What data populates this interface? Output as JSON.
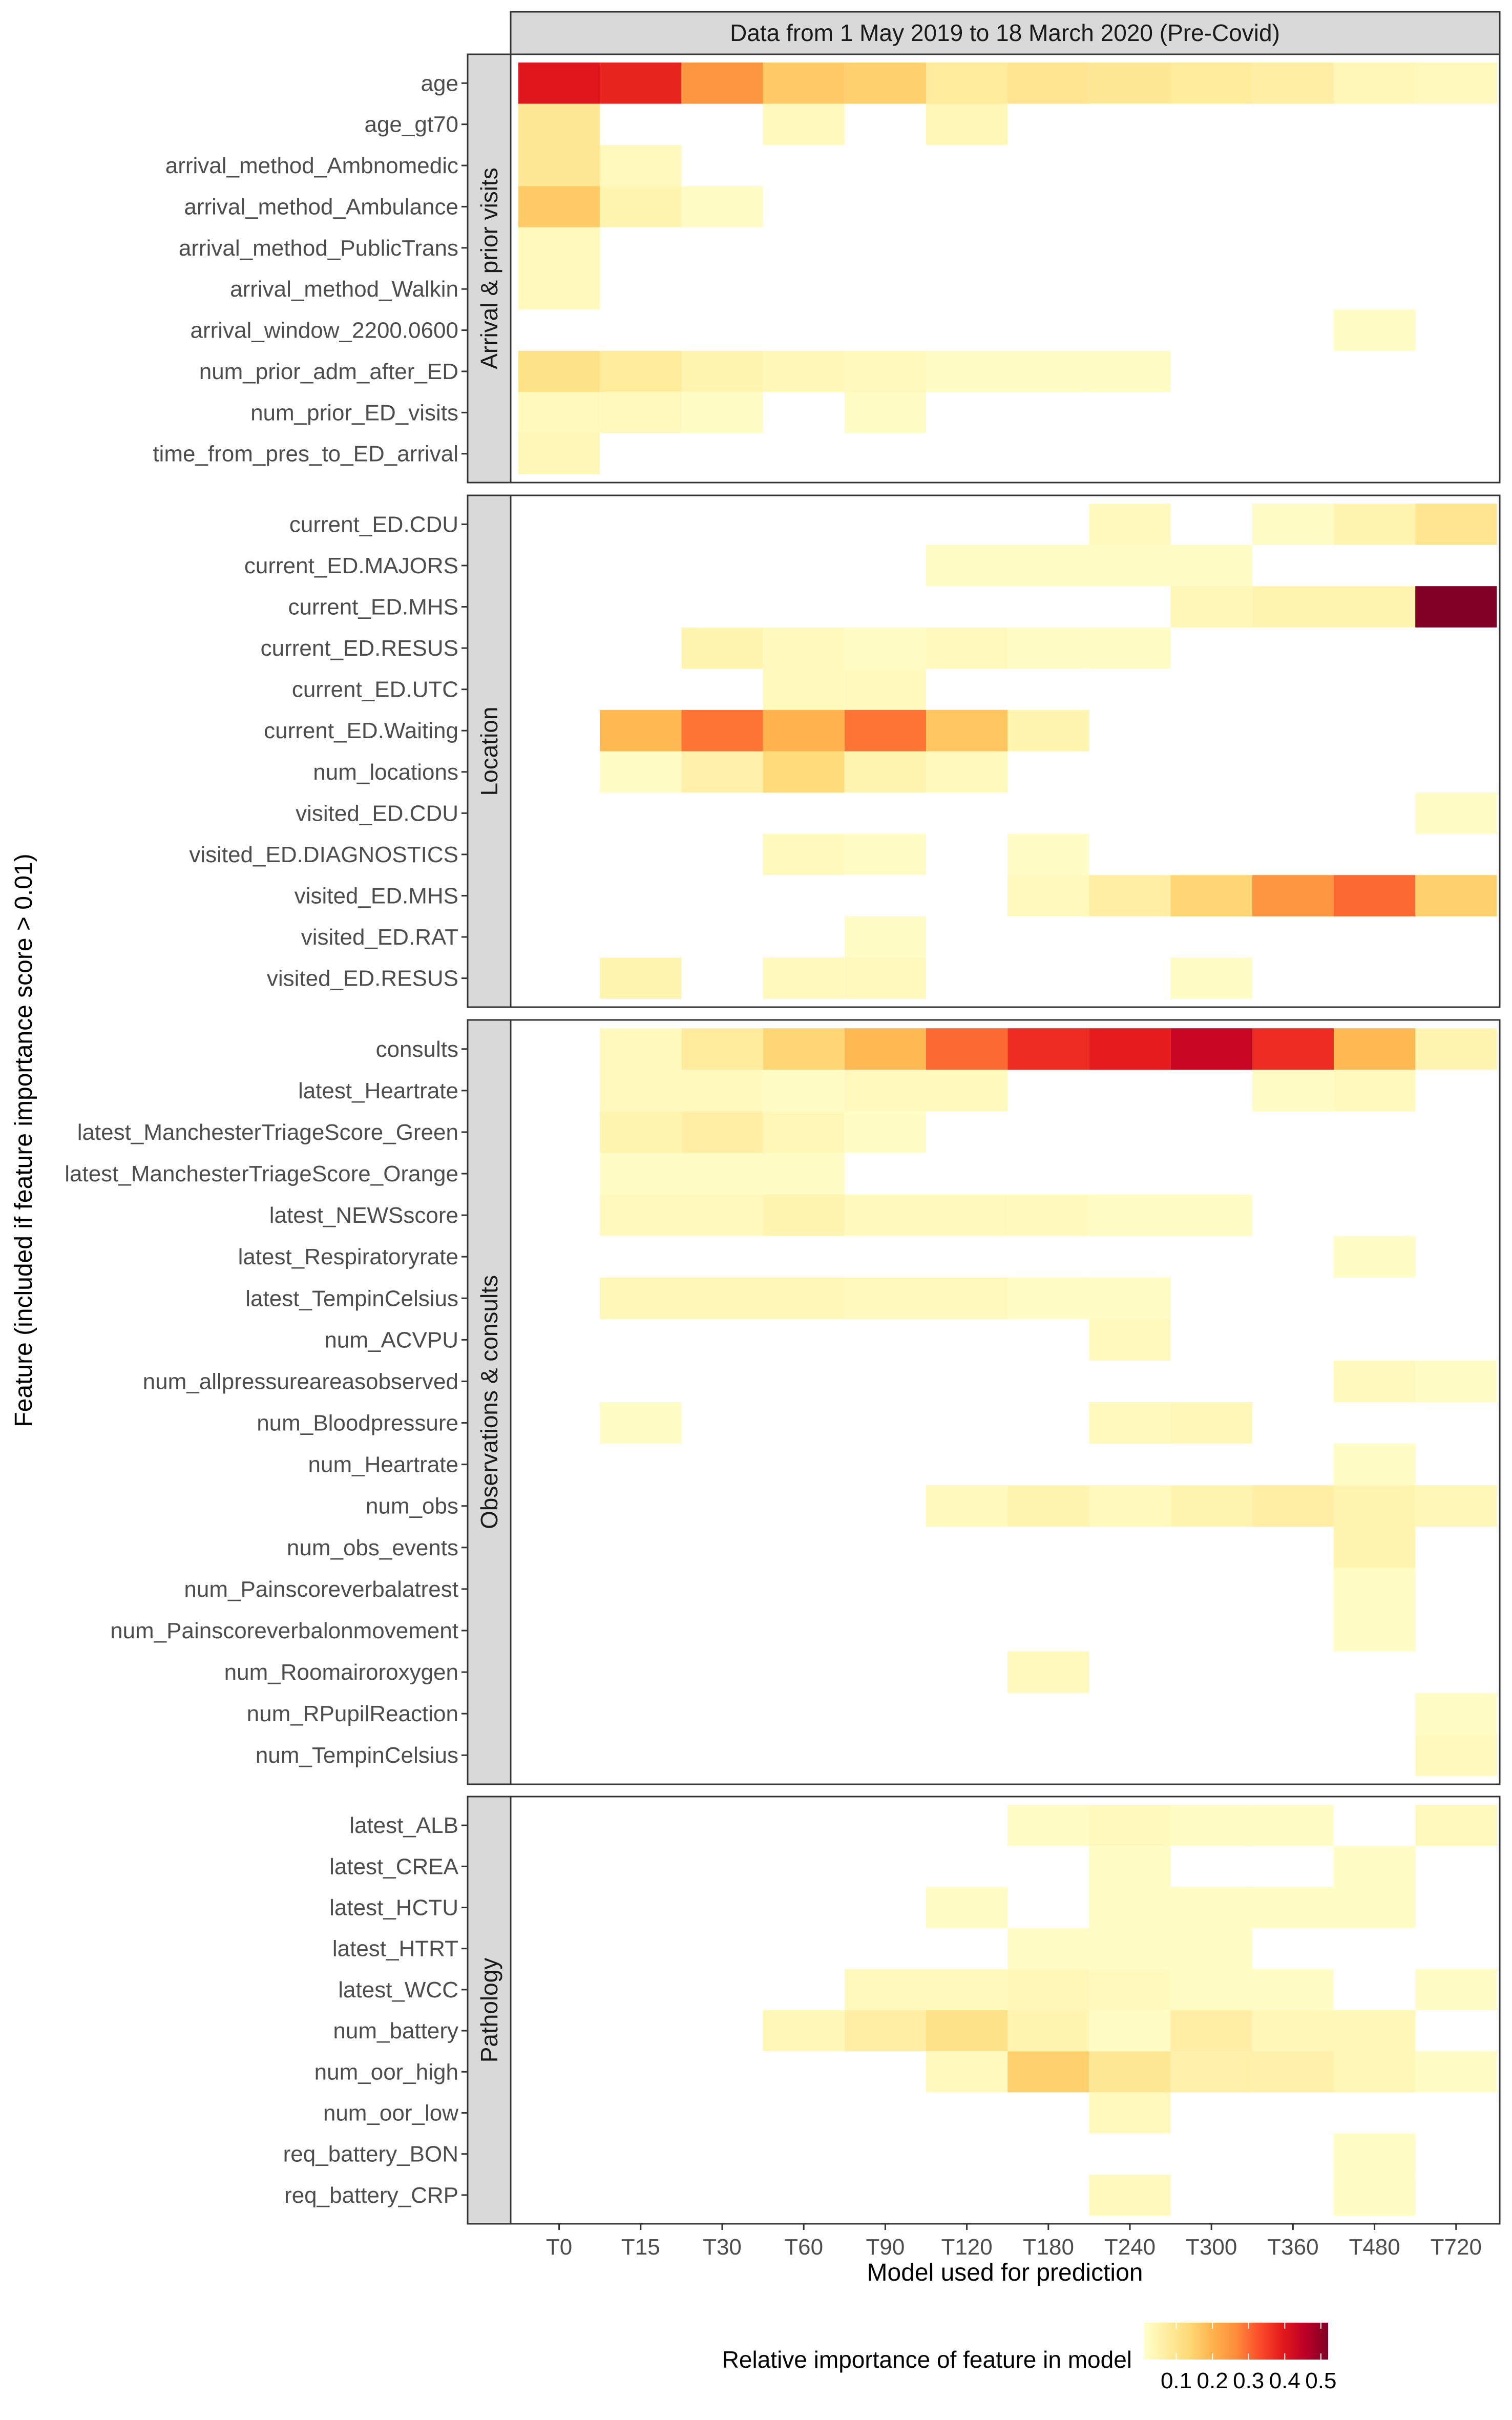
{
  "chart_data": {
    "type": "heatmap",
    "title": "Data from 1 May 2019 to 18 March 2020 (Pre-Covid)",
    "xlabel": "Model used for prediction",
    "ylabel": "Feature (included if feature importance score > 0.01)",
    "x": [
      "T0",
      "T15",
      "T30",
      "T60",
      "T90",
      "T120",
      "T180",
      "T240",
      "T300",
      "T360",
      "T480",
      "T720"
    ],
    "legend": {
      "title": "Relative importance of feature in model",
      "ticks": [
        "0.1",
        "0.2",
        "0.3",
        "0.4",
        "0.5"
      ],
      "tick_values": [
        0.1,
        0.2,
        0.3,
        0.4,
        0.5
      ],
      "range": [
        0.01,
        0.52
      ],
      "placement": "bottom",
      "colors": [
        "#FFFFCC",
        "#FFEDA0",
        "#FED976",
        "#FEB24C",
        "#FD8D3C",
        "#FC4E2A",
        "#E31A1C",
        "#BD0026",
        "#800026"
      ]
    },
    "panels": [
      {
        "label": "Arrival & prior visits",
        "rows": [
          {
            "feature": "age",
            "values": [
              0.4,
              0.38,
              0.25,
              0.16,
              0.15,
              0.08,
              0.1,
              0.09,
              0.08,
              0.07,
              0.04,
              0.03
            ]
          },
          {
            "feature": "age_gt70",
            "values": [
              0.09,
              null,
              null,
              0.03,
              null,
              0.04,
              null,
              null,
              null,
              null,
              null,
              null
            ]
          },
          {
            "feature": "arrival_method_Ambnomedic",
            "values": [
              0.09,
              0.03,
              null,
              null,
              null,
              null,
              null,
              null,
              null,
              null,
              null,
              null
            ]
          },
          {
            "feature": "arrival_method_Ambulance",
            "values": [
              0.16,
              0.05,
              0.02,
              null,
              null,
              null,
              null,
              null,
              null,
              null,
              null,
              null
            ]
          },
          {
            "feature": "arrival_method_PublicTrans",
            "values": [
              0.03,
              null,
              null,
              null,
              null,
              null,
              null,
              null,
              null,
              null,
              null,
              null
            ]
          },
          {
            "feature": "arrival_method_Walkin",
            "values": [
              0.03,
              null,
              null,
              null,
              null,
              null,
              null,
              null,
              null,
              null,
              null,
              null
            ]
          },
          {
            "feature": "arrival_window_2200.0600",
            "values": [
              null,
              null,
              null,
              null,
              null,
              null,
              null,
              null,
              null,
              null,
              0.02,
              null
            ]
          },
          {
            "feature": "num_prior_adm_after_ED",
            "values": [
              0.11,
              0.08,
              0.05,
              0.04,
              0.03,
              0.02,
              0.02,
              0.02,
              null,
              null,
              null,
              null
            ]
          },
          {
            "feature": "num_prior_ED_visits",
            "values": [
              0.03,
              0.03,
              0.02,
              null,
              0.02,
              null,
              null,
              null,
              null,
              null,
              null,
              null
            ]
          },
          {
            "feature": "time_from_pres_to_ED_arrival",
            "values": [
              0.04,
              null,
              null,
              null,
              null,
              null,
              null,
              null,
              null,
              null,
              null,
              null
            ]
          }
        ]
      },
      {
        "label": "Location",
        "rows": [
          {
            "feature": "current_ED.CDU",
            "values": [
              null,
              null,
              null,
              null,
              null,
              null,
              null,
              0.03,
              null,
              0.02,
              0.05,
              0.1
            ]
          },
          {
            "feature": "current_ED.MAJORS",
            "values": [
              null,
              null,
              null,
              null,
              null,
              0.02,
              0.02,
              0.02,
              0.02,
              null,
              null,
              null
            ]
          },
          {
            "feature": "current_ED.MHS",
            "values": [
              null,
              null,
              null,
              null,
              null,
              null,
              null,
              null,
              0.04,
              0.05,
              0.05,
              0.52
            ]
          },
          {
            "feature": "current_ED.RESUS",
            "values": [
              null,
              null,
              0.05,
              0.03,
              0.02,
              0.03,
              0.02,
              0.02,
              null,
              null,
              null,
              null
            ]
          },
          {
            "feature": "current_ED.UTC",
            "values": [
              null,
              null,
              null,
              0.03,
              0.03,
              null,
              null,
              null,
              null,
              null,
              null,
              null
            ]
          },
          {
            "feature": "current_ED.Waiting",
            "values": [
              null,
              0.19,
              0.29,
              0.2,
              0.29,
              0.17,
              0.05,
              null,
              null,
              null,
              null,
              null
            ]
          },
          {
            "feature": "num_locations",
            "values": [
              null,
              0.02,
              0.06,
              0.13,
              0.05,
              0.03,
              null,
              null,
              null,
              null,
              null,
              null
            ]
          },
          {
            "feature": "visited_ED.CDU",
            "values": [
              null,
              null,
              null,
              null,
              null,
              null,
              null,
              null,
              null,
              null,
              null,
              0.02
            ]
          },
          {
            "feature": "visited_ED.DIAGNOSTICS",
            "values": [
              null,
              null,
              null,
              0.03,
              0.02,
              null,
              0.02,
              null,
              null,
              null,
              null,
              null
            ]
          },
          {
            "feature": "visited_ED.MHS",
            "values": [
              null,
              null,
              null,
              null,
              null,
              null,
              0.03,
              0.07,
              0.14,
              0.25,
              0.3,
              0.15
            ]
          },
          {
            "feature": "visited_ED.RAT",
            "values": [
              null,
              null,
              null,
              null,
              0.02,
              null,
              null,
              null,
              null,
              null,
              null,
              null
            ]
          },
          {
            "feature": "visited_ED.RESUS",
            "values": [
              null,
              0.05,
              null,
              0.03,
              0.03,
              null,
              null,
              null,
              0.02,
              null,
              null,
              null
            ]
          }
        ]
      },
      {
        "label": "Observations & consults",
        "rows": [
          {
            "feature": "consults",
            "values": [
              null,
              0.03,
              0.08,
              0.14,
              0.19,
              0.3,
              0.37,
              0.39,
              0.44,
              0.37,
              0.19,
              0.05
            ]
          },
          {
            "feature": "latest_Heartrate",
            "values": [
              null,
              0.03,
              0.03,
              0.02,
              0.03,
              0.03,
              null,
              null,
              null,
              0.02,
              0.03,
              null
            ]
          },
          {
            "feature": "latest_ManchesterTriageScore_Green",
            "values": [
              null,
              0.05,
              0.07,
              0.04,
              0.02,
              null,
              null,
              null,
              null,
              null,
              null,
              null
            ]
          },
          {
            "feature": "latest_ManchesterTriageScore_Orange",
            "values": [
              null,
              0.02,
              0.02,
              0.02,
              null,
              null,
              null,
              null,
              null,
              null,
              null,
              null
            ]
          },
          {
            "feature": "latest_NEWSscore",
            "values": [
              null,
              0.03,
              0.03,
              0.05,
              0.03,
              0.03,
              0.03,
              0.02,
              0.02,
              null,
              null,
              null
            ]
          },
          {
            "feature": "latest_Respiratoryrate",
            "values": [
              null,
              null,
              null,
              null,
              null,
              null,
              null,
              null,
              null,
              null,
              0.02,
              null
            ]
          },
          {
            "feature": "latest_TempinCelsius",
            "values": [
              null,
              0.04,
              0.04,
              0.04,
              0.03,
              0.03,
              0.02,
              0.02,
              null,
              null,
              null,
              null
            ]
          },
          {
            "feature": "num_ACVPU",
            "values": [
              null,
              null,
              null,
              null,
              null,
              null,
              null,
              0.03,
              null,
              null,
              null,
              null
            ]
          },
          {
            "feature": "num_allpressureareasobserved",
            "values": [
              null,
              null,
              null,
              null,
              null,
              null,
              null,
              null,
              null,
              null,
              0.03,
              0.02
            ]
          },
          {
            "feature": "num_Bloodpressure",
            "values": [
              null,
              0.02,
              null,
              null,
              null,
              null,
              null,
              0.03,
              0.04,
              null,
              null,
              null
            ]
          },
          {
            "feature": "num_Heartrate",
            "values": [
              null,
              null,
              null,
              null,
              null,
              null,
              null,
              null,
              null,
              null,
              0.02,
              null
            ]
          },
          {
            "feature": "num_obs",
            "values": [
              null,
              null,
              null,
              null,
              null,
              0.03,
              0.05,
              0.03,
              0.05,
              0.07,
              0.05,
              0.04
            ]
          },
          {
            "feature": "num_obs_events",
            "values": [
              null,
              null,
              null,
              null,
              null,
              null,
              null,
              null,
              null,
              null,
              0.05,
              null
            ]
          },
          {
            "feature": "num_Painscoreverbalatrest",
            "values": [
              null,
              null,
              null,
              null,
              null,
              null,
              null,
              null,
              null,
              null,
              0.02,
              null
            ]
          },
          {
            "feature": "num_Painscoreverbalonmovement",
            "values": [
              null,
              null,
              null,
              null,
              null,
              null,
              null,
              null,
              null,
              null,
              0.02,
              null
            ]
          },
          {
            "feature": "num_Roomairoroxygen",
            "values": [
              null,
              null,
              null,
              null,
              null,
              null,
              0.03,
              null,
              null,
              null,
              null,
              null
            ]
          },
          {
            "feature": "num_RPupilReaction",
            "values": [
              null,
              null,
              null,
              null,
              null,
              null,
              null,
              null,
              null,
              null,
              null,
              0.02
            ]
          },
          {
            "feature": "num_TempinCelsius",
            "values": [
              null,
              null,
              null,
              null,
              null,
              null,
              null,
              null,
              null,
              null,
              null,
              0.03
            ]
          }
        ]
      },
      {
        "label": "Pathology",
        "rows": [
          {
            "feature": "latest_ALB",
            "values": [
              null,
              null,
              null,
              null,
              null,
              null,
              0.02,
              0.03,
              0.02,
              0.02,
              null,
              0.03
            ]
          },
          {
            "feature": "latest_CREA",
            "values": [
              null,
              null,
              null,
              null,
              null,
              null,
              null,
              0.02,
              null,
              null,
              0.02,
              null
            ]
          },
          {
            "feature": "latest_HCTU",
            "values": [
              null,
              null,
              null,
              null,
              null,
              0.02,
              null,
              0.02,
              0.02,
              0.02,
              0.02,
              null
            ]
          },
          {
            "feature": "latest_HTRT",
            "values": [
              null,
              null,
              null,
              null,
              null,
              null,
              0.02,
              0.02,
              0.02,
              null,
              null,
              null
            ]
          },
          {
            "feature": "latest_WCC",
            "values": [
              null,
              null,
              null,
              null,
              0.03,
              0.03,
              0.04,
              0.03,
              0.02,
              0.02,
              null,
              0.02
            ]
          },
          {
            "feature": "num_battery",
            "values": [
              null,
              null,
              null,
              0.04,
              0.07,
              0.11,
              0.05,
              0.02,
              0.07,
              0.04,
              0.04,
              null
            ]
          },
          {
            "feature": "num_oor_high",
            "values": [
              null,
              null,
              null,
              null,
              null,
              0.03,
              0.15,
              0.09,
              0.06,
              0.06,
              0.04,
              0.02
            ]
          },
          {
            "feature": "num_oor_low",
            "values": [
              null,
              null,
              null,
              null,
              null,
              null,
              null,
              0.03,
              null,
              null,
              null,
              null
            ]
          },
          {
            "feature": "req_battery_BON",
            "values": [
              null,
              null,
              null,
              null,
              null,
              null,
              null,
              null,
              null,
              null,
              0.02,
              null
            ]
          },
          {
            "feature": "req_battery_CRP",
            "values": [
              null,
              null,
              null,
              null,
              null,
              null,
              null,
              0.03,
              null,
              null,
              0.02,
              null
            ]
          }
        ]
      }
    ]
  }
}
